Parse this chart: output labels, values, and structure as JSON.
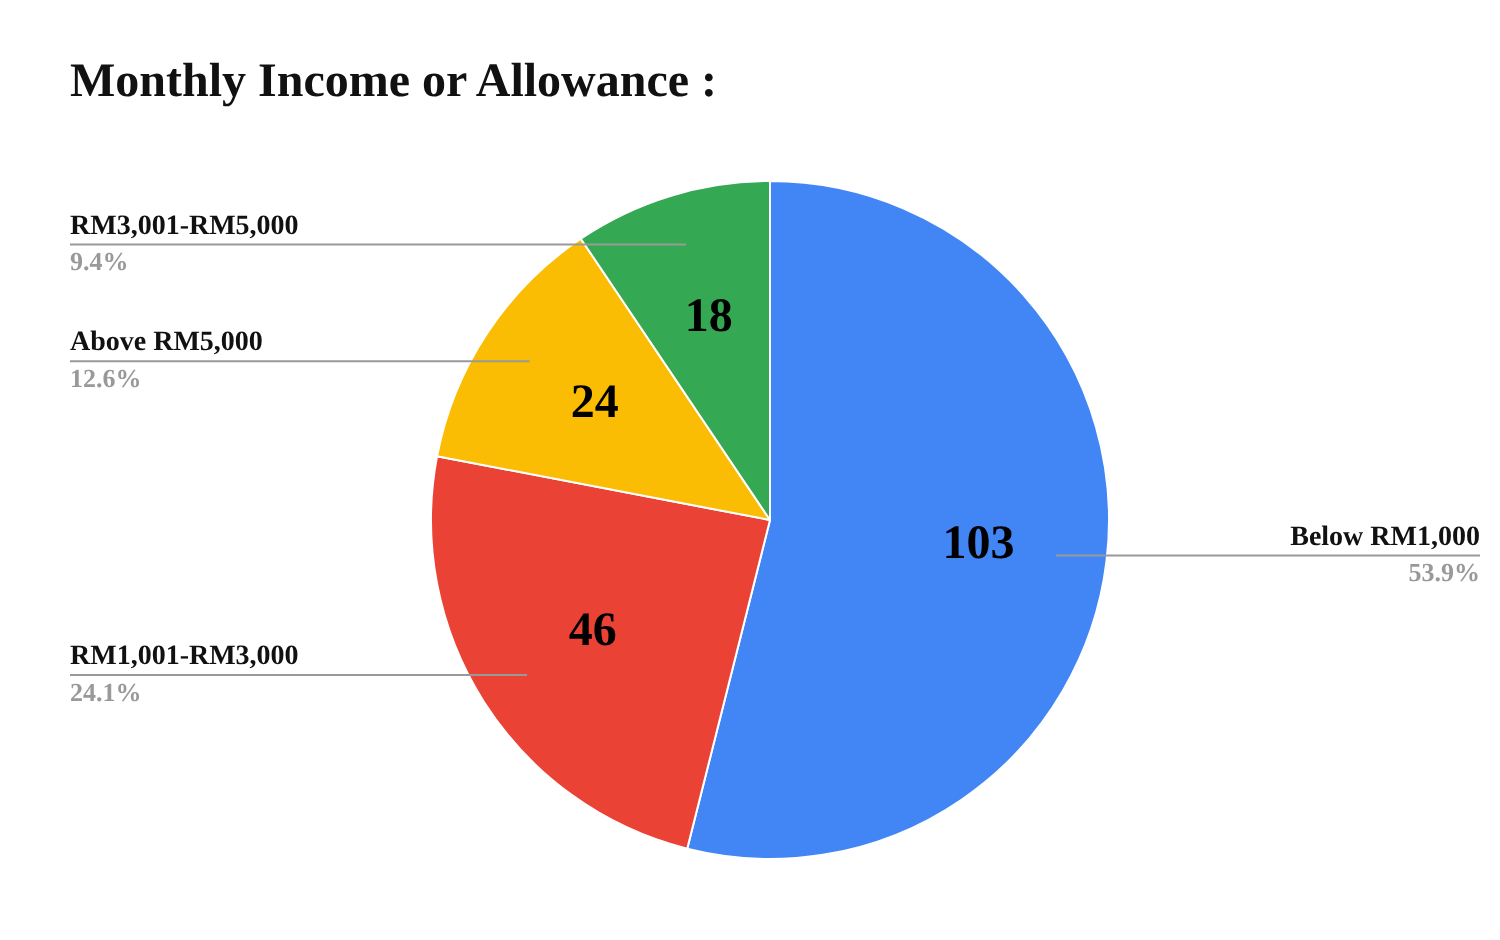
{
  "chart_data": {
    "type": "pie",
    "title": "Monthly Income or Allowance :",
    "categories": [
      "Below RM1,000",
      "RM1,001-RM3,000",
      "Above RM5,000",
      "RM3,001-RM5,000"
    ],
    "values": [
      103,
      46,
      24,
      18
    ],
    "colors": [
      "#4285f4",
      "#ea4335",
      "#fbbc04",
      "#34a853"
    ],
    "annotations": [
      {
        "text": "53.9%",
        "x": "Below RM1,000"
      },
      {
        "text": "24.1%",
        "x": "RM1,001-RM3,000"
      },
      {
        "text": "12.6%",
        "x": "Above RM5,000"
      },
      {
        "text": "9.4%",
        "x": "RM3,001-RM5,000"
      }
    ],
    "data_labels": true,
    "legend": false
  }
}
